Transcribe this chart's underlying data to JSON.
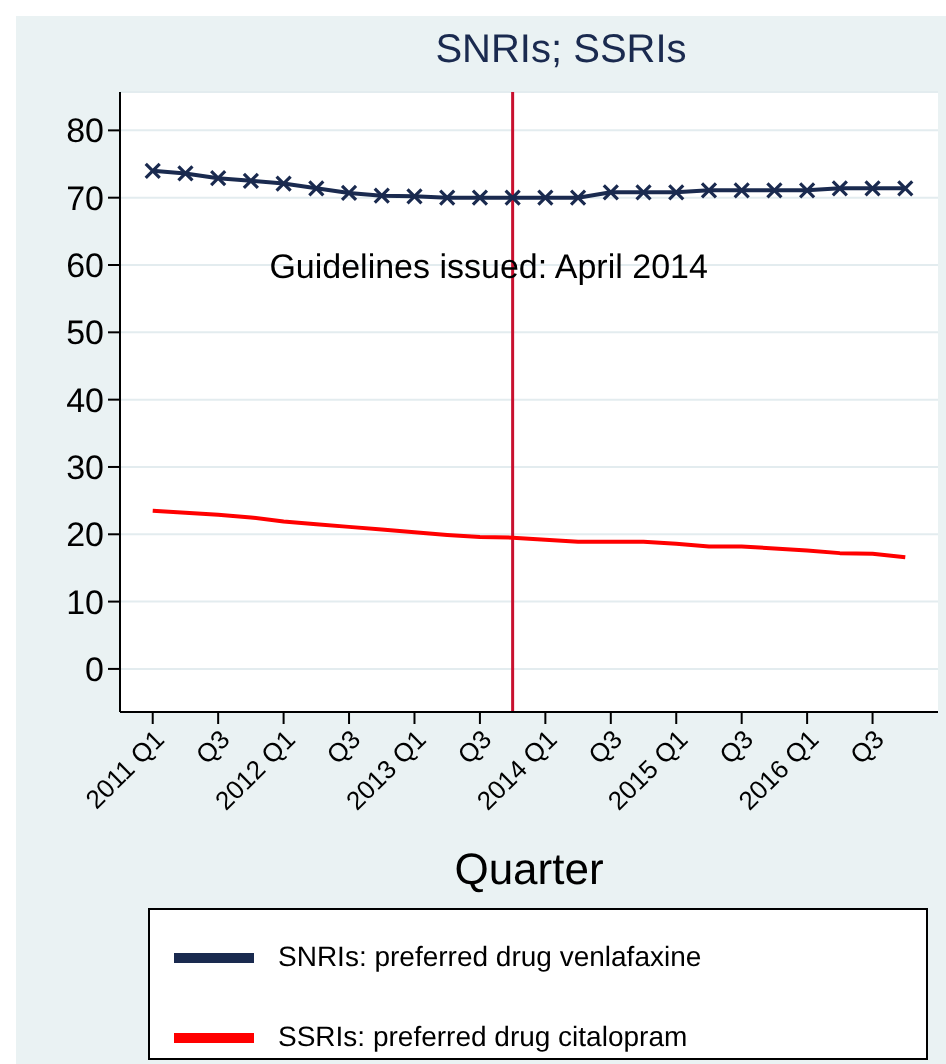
{
  "chart_data": {
    "type": "line",
    "title": "SNRIs; SSRIs",
    "xlabel": "Quarter",
    "x": [
      "2011-01",
      "2011-04",
      "2011-07",
      "2011-10",
      "2012-01",
      "2012-04",
      "2012-07",
      "2012-10",
      "2013-01",
      "2013-04",
      "2013-07",
      "2013-10",
      "2014-01",
      "2014-04",
      "2014-07",
      "2014-10",
      "2015-01",
      "2015-04",
      "2015-07",
      "2015-10",
      "2016-01",
      "2016-04",
      "2016-07",
      "2016-10"
    ],
    "series": [
      {
        "name": "SNRIs: preferred drug venlafaxine",
        "color": "#1a2a4f",
        "marker": "cross",
        "values": [
          74.0,
          73.6,
          72.9,
          72.5,
          72.1,
          71.4,
          70.7,
          70.3,
          70.2,
          70.0,
          70.0,
          70.0,
          70.0,
          70.0,
          70.8,
          70.8,
          70.8,
          71.1,
          71.1,
          71.1,
          71.1,
          71.4,
          71.4,
          71.4
        ]
      },
      {
        "name": "SSRIs: preferred drug citalopram",
        "color": "#ff0000",
        "marker": "none",
        "values": [
          23.5,
          23.2,
          22.9,
          22.5,
          21.9,
          21.5,
          21.1,
          20.7,
          20.3,
          19.9,
          19.6,
          19.5,
          19.2,
          18.9,
          18.9,
          18.9,
          18.6,
          18.2,
          18.2,
          17.9,
          17.6,
          17.2,
          17.1,
          16.6
        ]
      }
    ],
    "xlim": [
      "2010-10",
      "2017-01"
    ],
    "xticks": [
      {
        "value": "2011-01",
        "label": "2011 Q1"
      },
      {
        "value": "2011-07",
        "label": "Q3"
      },
      {
        "value": "2012-01",
        "label": "2012 Q1"
      },
      {
        "value": "2012-07",
        "label": "Q3"
      },
      {
        "value": "2013-01",
        "label": "2013 Q1"
      },
      {
        "value": "2013-07",
        "label": "Q3"
      },
      {
        "value": "2014-01",
        "label": "2014 Q1"
      },
      {
        "value": "2014-07",
        "label": "Q3"
      },
      {
        "value": "2015-01",
        "label": "2015 Q1"
      },
      {
        "value": "2015-07",
        "label": "Q3"
      },
      {
        "value": "2016-01",
        "label": "2016 Q1"
      },
      {
        "value": "2016-07",
        "label": "Q3"
      }
    ],
    "ylim": [
      -6.4,
      85.7
    ],
    "yticks": [
      0,
      10,
      20,
      30,
      40,
      50,
      60,
      70,
      80
    ],
    "grid": "y",
    "legend": "bottom",
    "ref_lines": [
      {
        "axis": "x",
        "value": "2013-10",
        "label": "Guidelines issued:  April 2014",
        "color": "#c8102e"
      }
    ]
  }
}
